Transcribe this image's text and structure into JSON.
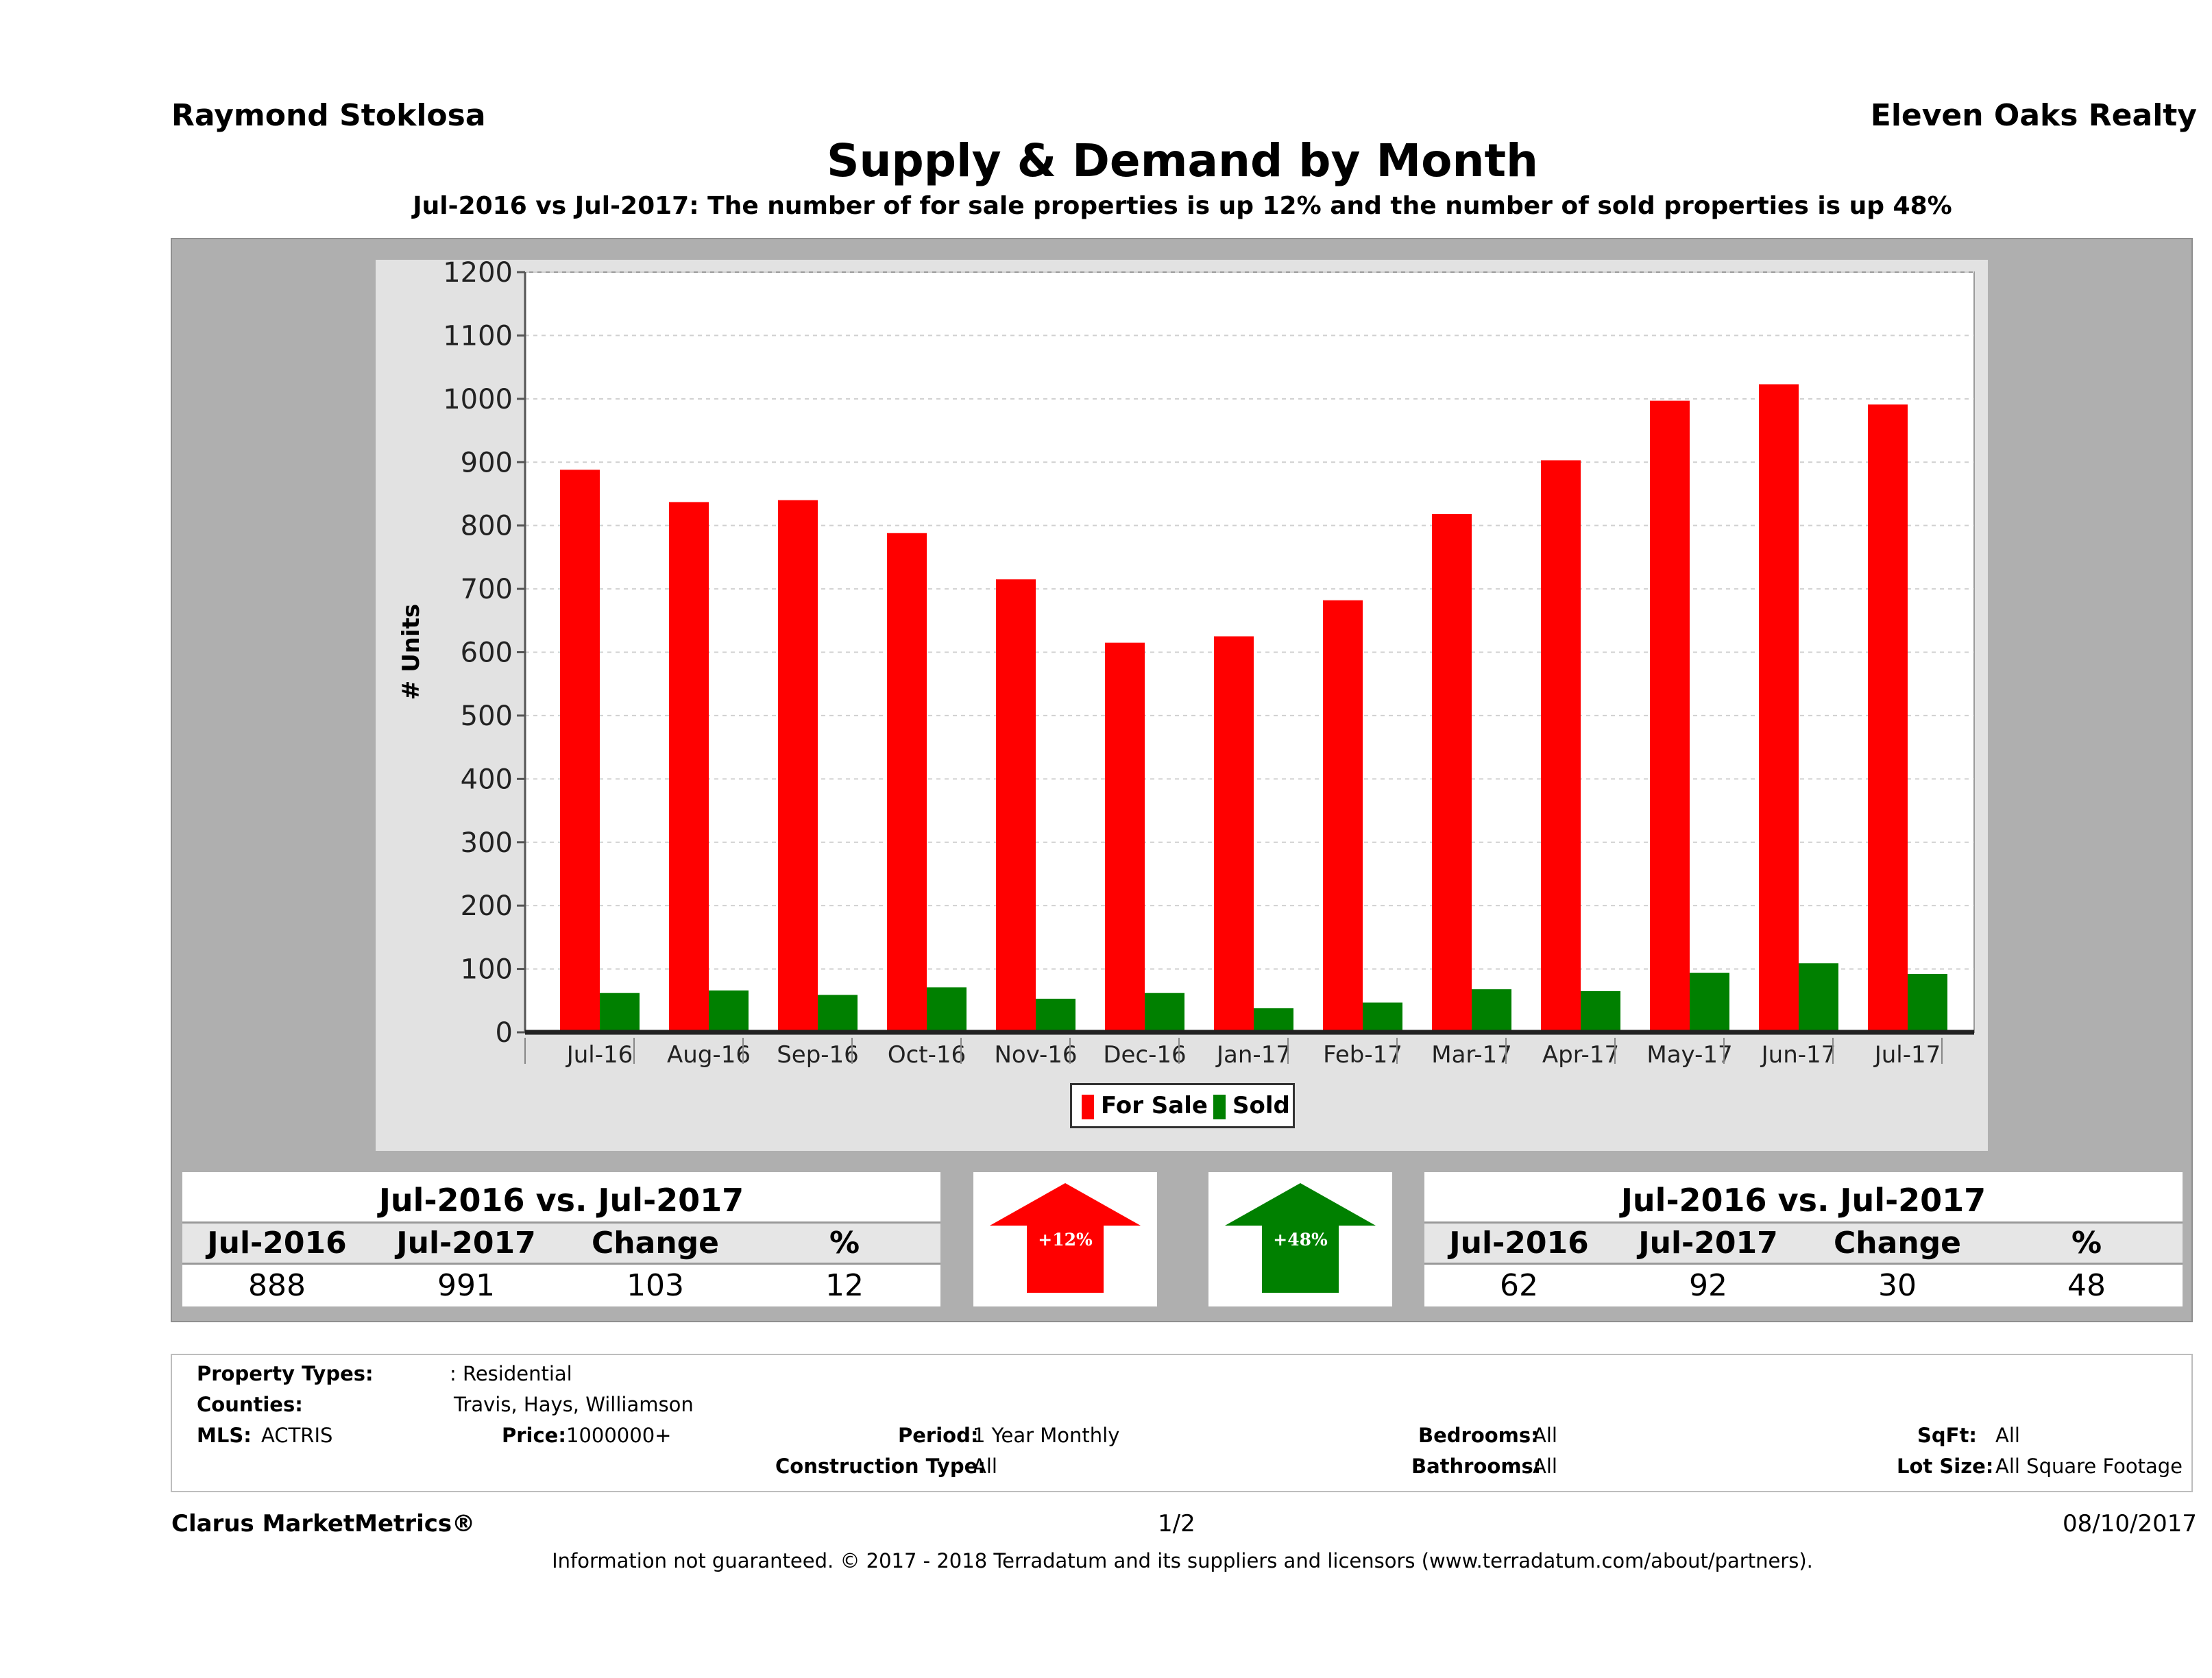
{
  "header": {
    "agent": "Raymond Stoklosa",
    "brokerage": "Eleven Oaks Realty",
    "title": "Supply & Demand by Month",
    "subtitle": "Jul-2016 vs Jul-2017: The number of for sale properties is up 12% and the number of sold properties is up 48%"
  },
  "chart_data": {
    "type": "bar",
    "title": "Supply & Demand by Month",
    "ylabel": "# Units",
    "xlabel": "",
    "ylim": [
      0,
      1200
    ],
    "yticks": [
      0,
      100,
      200,
      300,
      400,
      500,
      600,
      700,
      800,
      900,
      1000,
      1100,
      1200
    ],
    "grid": true,
    "legend_position": "bottom",
    "categories": [
      "Jul-16",
      "Aug-16",
      "Sep-16",
      "Oct-16",
      "Nov-16",
      "Dec-16",
      "Jan-17",
      "Feb-17",
      "Mar-17",
      "Apr-17",
      "May-17",
      "Jun-17",
      "Jul-17"
    ],
    "series": [
      {
        "name": "For Sale",
        "color": "#ff0000",
        "values": [
          888,
          837,
          840,
          788,
          715,
          615,
          625,
          682,
          818,
          903,
          997,
          1023,
          991
        ]
      },
      {
        "name": "Sold",
        "color": "#008000",
        "values": [
          62,
          66,
          59,
          71,
          53,
          62,
          38,
          47,
          68,
          65,
          94,
          109,
          92
        ]
      }
    ]
  },
  "stats": {
    "for_sale": {
      "title": "Jul-2016 vs. Jul-2017",
      "headers": [
        "Jul-2016",
        "Jul-2017",
        "Change",
        "%"
      ],
      "values": [
        "888",
        "991",
        "103",
        "12"
      ],
      "arrow_label": "+12%",
      "arrow_color": "#ff0000"
    },
    "sold": {
      "title": "Jul-2016 vs. Jul-2017",
      "headers": [
        "Jul-2016",
        "Jul-2017",
        "Change",
        "%"
      ],
      "values": [
        "62",
        "92",
        "30",
        "48"
      ],
      "arrow_label": "+48%",
      "arrow_color": "#008000"
    }
  },
  "filters": {
    "property_types_label": "Property Types:",
    "property_types_value": ": Residential",
    "counties_label": "Counties:",
    "counties_value": "Travis, Hays, Williamson",
    "mls_label": "MLS:",
    "mls_value": "ACTRIS",
    "price_label": "Price:",
    "price_value": "1000000+",
    "period_label": "Period:",
    "period_value": "1 Year Monthly",
    "construction_label": "Construction Type:",
    "construction_value": "All",
    "bedrooms_label": "Bedrooms:",
    "bedrooms_value": "All",
    "bathrooms_label": "Bathrooms:",
    "bathrooms_value": "All",
    "sqft_label": "SqFt:",
    "sqft_value": "All",
    "lotsize_label": "Lot Size:",
    "lotsize_value": "All Square Footage"
  },
  "footer": {
    "product": "Clarus MarketMetrics®",
    "page": "1/2",
    "date": "08/10/2017",
    "disclaimer": "Information not guaranteed. © 2017 - 2018 Terradatum and its suppliers and licensors (www.terradatum.com/about/partners)."
  }
}
